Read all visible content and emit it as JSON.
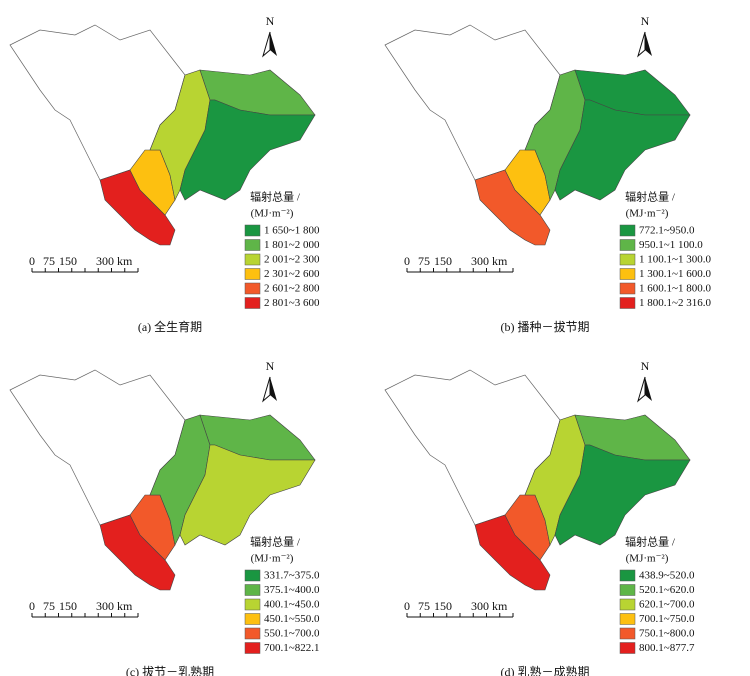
{
  "panels": [
    {
      "caption": "(a)  全生育期",
      "north": "N",
      "legend_title": "辐射总量 /",
      "legend_unit": "(MJ·m⁻²)",
      "legend": [
        {
          "label": "1 650~1 800",
          "color": "#1a9641"
        },
        {
          "label": "1 801~2 000",
          "color": "#5fb548"
        },
        {
          "label": "2 001~2 300",
          "color": "#b8d432"
        },
        {
          "label": "2 301~2 600",
          "color": "#fdc010"
        },
        {
          "label": "2 601~2 800",
          "color": "#f2592a"
        },
        {
          "label": "2 801~3 600",
          "color": "#e3201e"
        }
      ],
      "scale": [
        "0",
        "75",
        "150",
        "300 km"
      ]
    },
    {
      "caption": "(b)  播种－拔节期",
      "north": "N",
      "legend_title": "辐射总量 /",
      "legend_unit": "(MJ·m⁻²)",
      "legend": [
        {
          "label": "772.1~950.0",
          "color": "#1a9641"
        },
        {
          "label": "950.1~1 100.0",
          "color": "#5fb548"
        },
        {
          "label": "1 100.1~1 300.0",
          "color": "#b8d432"
        },
        {
          "label": "1 300.1~1 600.0",
          "color": "#fdc010"
        },
        {
          "label": "1 600.1~1 800.0",
          "color": "#f2592a"
        },
        {
          "label": "1 800.1~2 316.0",
          "color": "#e3201e"
        }
      ],
      "scale": [
        "0",
        "75",
        "150",
        "300 km"
      ]
    },
    {
      "caption": "(c)  拔节－乳熟期",
      "north": "N",
      "legend_title": "辐射总量 /",
      "legend_unit": "(MJ·m⁻²)",
      "legend": [
        {
          "label": "331.7~375.0",
          "color": "#1a9641"
        },
        {
          "label": "375.1~400.0",
          "color": "#5fb548"
        },
        {
          "label": "400.1~450.0",
          "color": "#b8d432"
        },
        {
          "label": "450.1~550.0",
          "color": "#fdc010"
        },
        {
          "label": "550.1~700.0",
          "color": "#f2592a"
        },
        {
          "label": "700.1~822.1",
          "color": "#e3201e"
        }
      ],
      "scale": [
        "0",
        "75",
        "150",
        "300 km"
      ]
    },
    {
      "caption": "(d)  乳熟－成熟期",
      "north": "N",
      "legend_title": "辐射总量 /",
      "legend_unit": "(MJ·m⁻²)",
      "legend": [
        {
          "label": "438.9~520.0",
          "color": "#1a9641"
        },
        {
          "label": "520.1~620.0",
          "color": "#5fb548"
        },
        {
          "label": "620.1~700.0",
          "color": "#b8d432"
        },
        {
          "label": "700.1~750.0",
          "color": "#fdc010"
        },
        {
          "label": "750.1~800.0",
          "color": "#f2592a"
        },
        {
          "label": "800.1~877.7",
          "color": "#e3201e"
        }
      ],
      "scale": [
        "0",
        "75",
        "150",
        "300 km"
      ]
    }
  ]
}
